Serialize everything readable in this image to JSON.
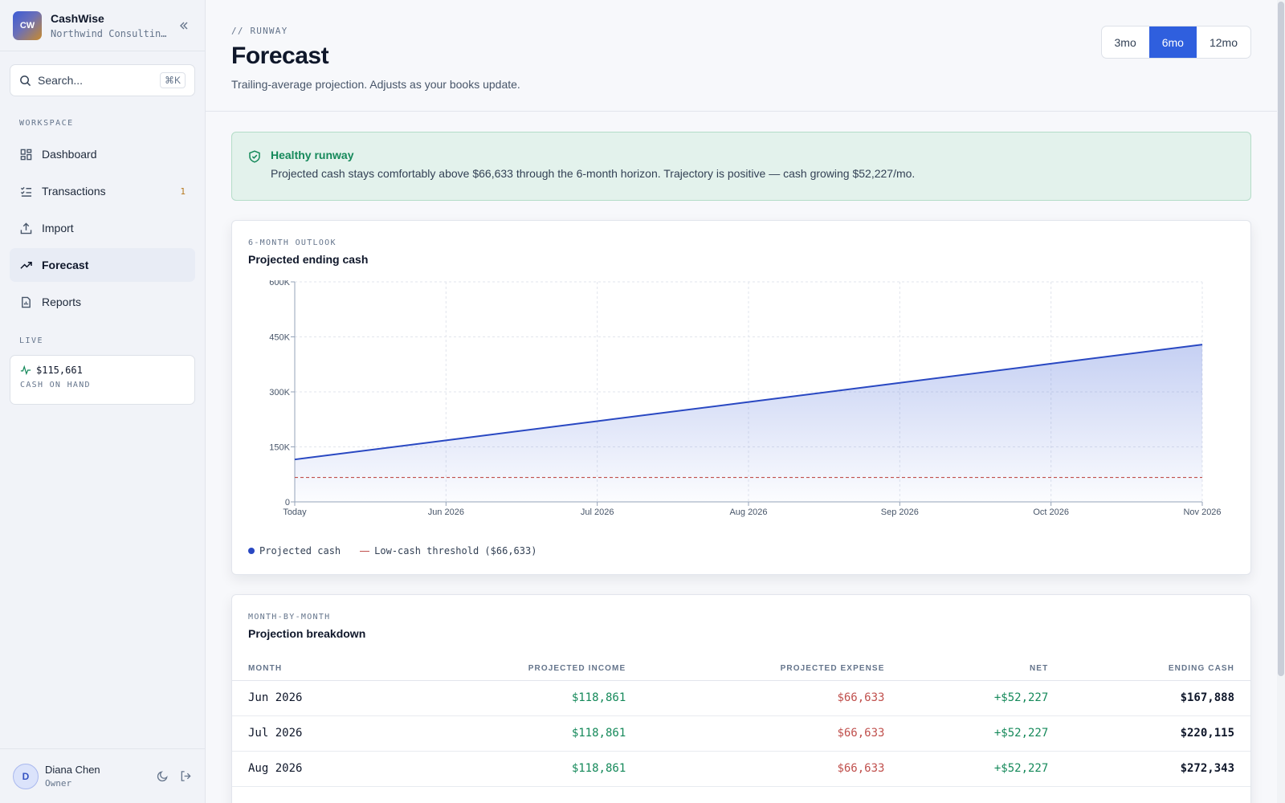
{
  "app": {
    "name": "CashWise",
    "logo_text": "CW",
    "organization": "Northwind Consulting…"
  },
  "sidebar": {
    "search_label": "Search...",
    "search_shortcut": "⌘K",
    "workspace_label": "WORKSPACE",
    "items": [
      {
        "label": "Dashboard",
        "icon": "dashboard-icon"
      },
      {
        "label": "Transactions",
        "icon": "list-check-icon",
        "badge": "1"
      },
      {
        "label": "Import",
        "icon": "upload-icon"
      },
      {
        "label": "Forecast",
        "icon": "trending-up-icon",
        "active": true
      },
      {
        "label": "Reports",
        "icon": "file-report-icon"
      }
    ],
    "live_label": "LIVE",
    "live_value": "$115,661",
    "live_caption": "CASH ON HAND"
  },
  "user": {
    "initial": "D",
    "name": "Diana Chen",
    "role": "Owner"
  },
  "header": {
    "eyebrow": "// RUNWAY",
    "title": "Forecast",
    "subtitle": "Trailing-average projection. Adjusts as your books update.",
    "ranges": [
      "3mo",
      "6mo",
      "12mo"
    ],
    "selected_range": "6mo"
  },
  "alert": {
    "title": "Healthy runway",
    "text": "Projected cash stays comfortably above $66,633 through the 6-month horizon. Trajectory is positive — cash growing $52,227/mo."
  },
  "chart_card": {
    "eyebrow": "6-MONTH OUTLOOK",
    "title": "Projected ending cash",
    "legend_series": "Projected cash",
    "legend_threshold": "Low-cash threshold ($66,633)"
  },
  "chart_data": {
    "type": "area",
    "x": [
      "Today",
      "Jun 2026",
      "Jul 2026",
      "Aug 2026",
      "Sep 2026",
      "Oct 2026",
      "Nov 2026"
    ],
    "series": [
      {
        "name": "Projected cash",
        "values": [
          115661,
          167888,
          220115,
          272343,
          324570,
          376797,
          429024
        ]
      }
    ],
    "threshold": {
      "name": "Low-cash threshold ($66,633)",
      "value": 66633
    },
    "yticks": [
      0,
      150000,
      300000,
      450000,
      600000
    ],
    "ytick_labels": [
      "0",
      "150K",
      "300K",
      "450K",
      "600K"
    ],
    "ylim": [
      0,
      600000
    ],
    "grid": true,
    "legend_position": "bottom-left",
    "colors": {
      "line": "#2948c2",
      "threshold": "#c0504d"
    }
  },
  "table_card": {
    "eyebrow": "MONTH-BY-MONTH",
    "title": "Projection breakdown",
    "columns": [
      "MONTH",
      "PROJECTED INCOME",
      "PROJECTED EXPENSE",
      "NET",
      "ENDING CASH"
    ],
    "rows": [
      [
        "Jun 2026",
        "$118,861",
        "$66,633",
        "+$52,227",
        "$167,888"
      ],
      [
        "Jul 2026",
        "$118,861",
        "$66,633",
        "+$52,227",
        "$220,115"
      ],
      [
        "Aug 2026",
        "$118,861",
        "$66,633",
        "+$52,227",
        "$272,343"
      ]
    ]
  }
}
